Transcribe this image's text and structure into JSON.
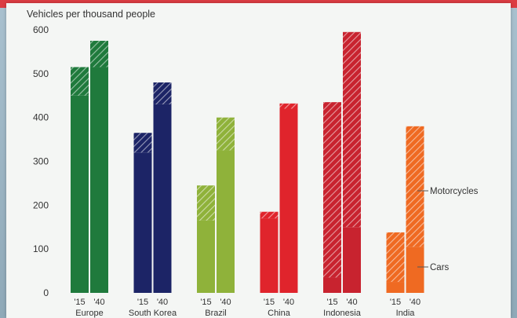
{
  "chart_data": {
    "type": "bar",
    "stacked": true,
    "title": "",
    "ylabel": "Vehicles per thousand people",
    "xlabel": "",
    "ylim": [
      0,
      600
    ],
    "yticks": [
      0,
      100,
      200,
      300,
      400,
      500,
      600
    ],
    "grid": false,
    "groups": [
      {
        "name": "Europe",
        "color": "#1f7a3c",
        "bars": [
          {
            "year": "'15",
            "cars": 450,
            "motorcycles": 65
          },
          {
            "year": "'40",
            "cars": 515,
            "motorcycles": 60
          }
        ]
      },
      {
        "name": "South Korea",
        "color": "#1c2466",
        "bars": [
          {
            "year": "'15",
            "cars": 320,
            "motorcycles": 45
          },
          {
            "year": "'40",
            "cars": 430,
            "motorcycles": 50
          }
        ]
      },
      {
        "name": "Brazil",
        "color": "#8fb23a",
        "bars": [
          {
            "year": "'15",
            "cars": 165,
            "motorcycles": 80
          },
          {
            "year": "'40",
            "cars": 325,
            "motorcycles": 75
          }
        ]
      },
      {
        "name": "China",
        "color": "#e0242c",
        "bars": [
          {
            "year": "'15",
            "cars": 170,
            "motorcycles": 15
          },
          {
            "year": "'40",
            "cars": 420,
            "motorcycles": 12
          }
        ]
      },
      {
        "name": "Indonesia",
        "color": "#c8232f",
        "bars": [
          {
            "year": "'15",
            "cars": 35,
            "motorcycles": 400
          },
          {
            "year": "'40",
            "cars": 150,
            "motorcycles": 445
          }
        ]
      },
      {
        "name": "India",
        "color": "#ef6a22",
        "bars": [
          {
            "year": "'15",
            "cars": 25,
            "motorcycles": 113
          },
          {
            "year": "'40",
            "cars": 105,
            "motorcycles": 275
          }
        ]
      }
    ],
    "legend": {
      "motorcycles": "Motorcycles",
      "cars": "Cars"
    }
  }
}
